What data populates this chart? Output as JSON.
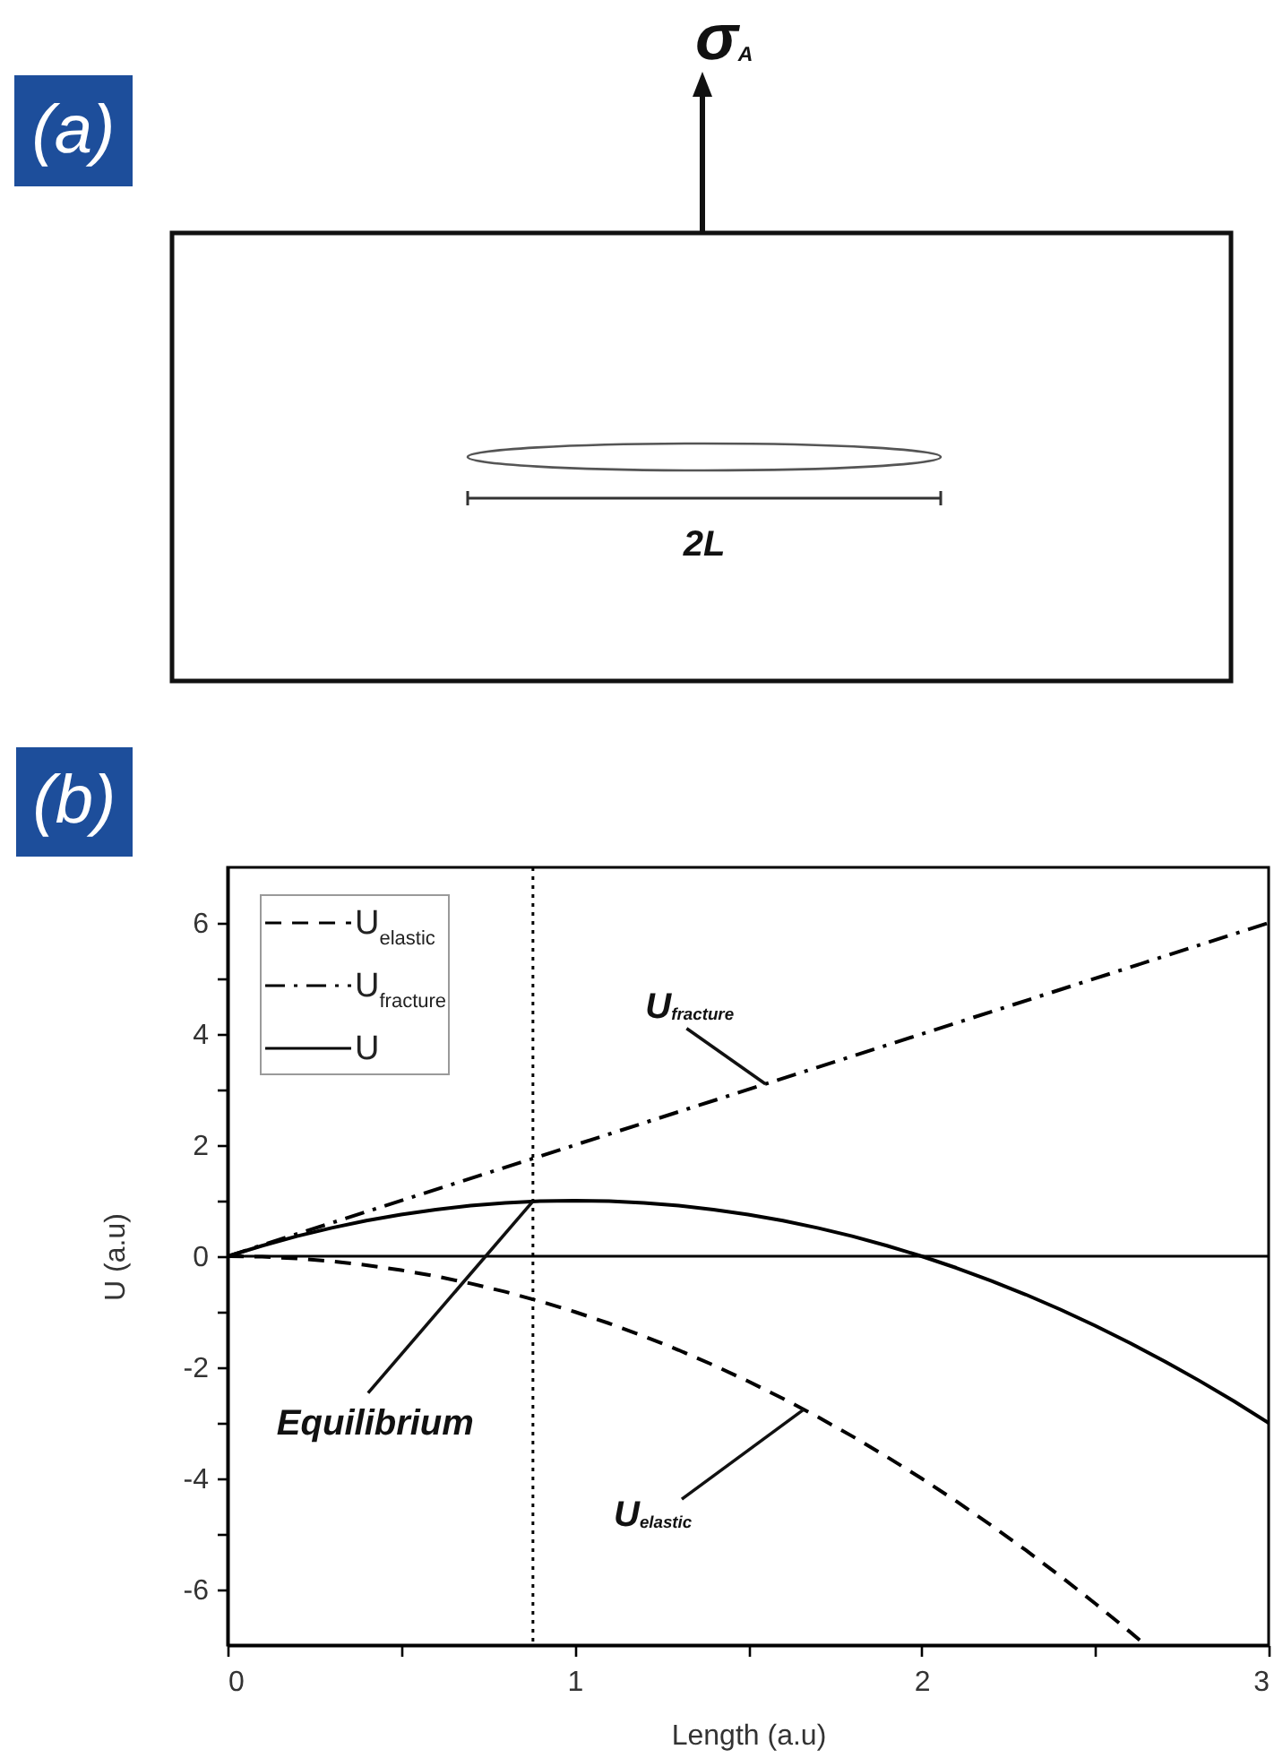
{
  "chart_data": [
    {
      "type": "other",
      "title": "(a)",
      "annotations": [
        "σ$_{A}$",
        "2L"
      ]
    },
    {
      "type": "line",
      "title": "(b)",
      "xlabel": "Length (a.u)",
      "ylabel": "U (a.u)",
      "series": [
        {
          "name": "U$_{elastic}$",
          "color": "#000000",
          "line_style": "dashed",
          "x": [
            0,
            0.1,
            0.2,
            0.3,
            0.4,
            0.5,
            0.6,
            0.7,
            0.8,
            0.9,
            1,
            1.1,
            1.2,
            1.3,
            1.4,
            1.5,
            1.6,
            1.7,
            1.8,
            1.9,
            2,
            2.1,
            2.2,
            2.3,
            2.4,
            2.5,
            2.6,
            2.64
          ],
          "values": [
            0,
            -0.01,
            -0.04,
            -0.09,
            -0.16,
            -0.25,
            -0.36,
            -0.49,
            -0.64,
            -0.81,
            -1,
            -1.21,
            -1.44,
            -1.69,
            -1.96,
            -2.25,
            -2.56,
            -2.89,
            -3.24,
            -3.61,
            -4,
            -4.41,
            -4.84,
            -5.29,
            -5.76,
            -6.25,
            -6.76,
            -6.97
          ]
        },
        {
          "name": "U$_{fracture}$",
          "color": "#000000",
          "line_style": "dashdot",
          "x": [
            0,
            3
          ],
          "values": [
            0,
            6
          ]
        },
        {
          "name": "U",
          "color": "#000000",
          "line_style": "solid",
          "x": [
            0,
            0.1,
            0.2,
            0.3,
            0.4,
            0.5,
            0.6,
            0.7,
            0.8,
            0.9,
            1,
            1.1,
            1.2,
            1.3,
            1.4,
            1.5,
            1.6,
            1.7,
            1.8,
            1.9,
            2,
            2.1,
            2.2,
            2.3,
            2.4,
            2.5,
            2.6,
            2.7,
            2.8,
            2.9,
            3
          ],
          "values": [
            0,
            0.19,
            0.36,
            0.51,
            0.64,
            0.75,
            0.84,
            0.91,
            0.96,
            0.99,
            1,
            0.99,
            0.96,
            0.91,
            0.84,
            0.75,
            0.64,
            0.51,
            0.36,
            0.19,
            0,
            -0.21,
            -0.44,
            -0.69,
            -0.96,
            -1.25,
            -1.56,
            -1.89,
            -2.24,
            -2.61,
            -3
          ]
        }
      ],
      "xlim": [
        0,
        3
      ],
      "ylim": [
        -7,
        7
      ],
      "xticks": [
        0,
        {
          "value": 0.5,
          "label": null
        },
        1,
        {
          "value": 1.5,
          "label": null
        },
        2,
        {
          "value": 2.5,
          "label": null
        },
        3
      ],
      "yticks": [
        -6,
        {
          "value": -5,
          "label": null
        },
        -4,
        {
          "value": -3,
          "label": null
        },
        -2,
        {
          "value": -1,
          "label": null
        },
        0,
        {
          "value": 1,
          "label": null
        },
        2,
        {
          "value": 3,
          "label": null
        },
        4,
        {
          "value": 5,
          "label": null
        },
        6
      ],
      "legend": "top left",
      "ref_lines": [
        {
          "axis": "x",
          "value": 0.88,
          "color": "#000000",
          "line_style": "dotted"
        },
        {
          "axis": "y",
          "value": 0,
          "color": "#000000",
          "line_style": "solid"
        }
      ],
      "annotations": [
        {
          "text": "U$_{fracture}$",
          "x": 1.55,
          "y": 3.1
        },
        {
          "text": "Equilibrium",
          "x": 0.88,
          "y": 0.99
        },
        {
          "text": "U$_{elastic}$",
          "x": 1.66,
          "y": -2.76
        }
      ]
    }
  ]
}
